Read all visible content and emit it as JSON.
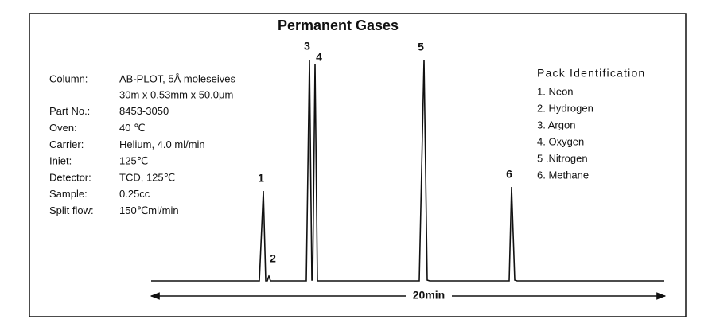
{
  "title": "Permanent Gases",
  "conditions": [
    {
      "label": "Column:",
      "values": [
        "AB-PLOT, 5Å moleseives",
        "30m x 0.53mm x 50.0μm"
      ]
    },
    {
      "label": "Part  No.:",
      "values": [
        "8453-3050"
      ]
    },
    {
      "label": "Oven:",
      "values": [
        "40 ℃"
      ]
    },
    {
      "label": "Carrier:",
      "values": [
        "Helium, 4.0 ml/min"
      ]
    },
    {
      "label": "Iniet:",
      "values": [
        "125℃"
      ]
    },
    {
      "label": "Detector:",
      "values": [
        "TCD, 125℃"
      ]
    },
    {
      "label": "Sample:",
      "values": [
        "0.25cc"
      ]
    },
    {
      "label": "Split flow:",
      "values": [
        "150℃ml/min"
      ]
    }
  ],
  "peak_labels": [
    "1",
    "2",
    "3",
    "4",
    "5",
    "6"
  ],
  "legend": {
    "title": "Pack Identification",
    "items": [
      "1. Neon",
      "2. Hydrogen",
      "3. Argon",
      "4. Oxygen",
      "5 .Nitrogen",
      "6.  Methane"
    ]
  },
  "time_span": "20min"
}
